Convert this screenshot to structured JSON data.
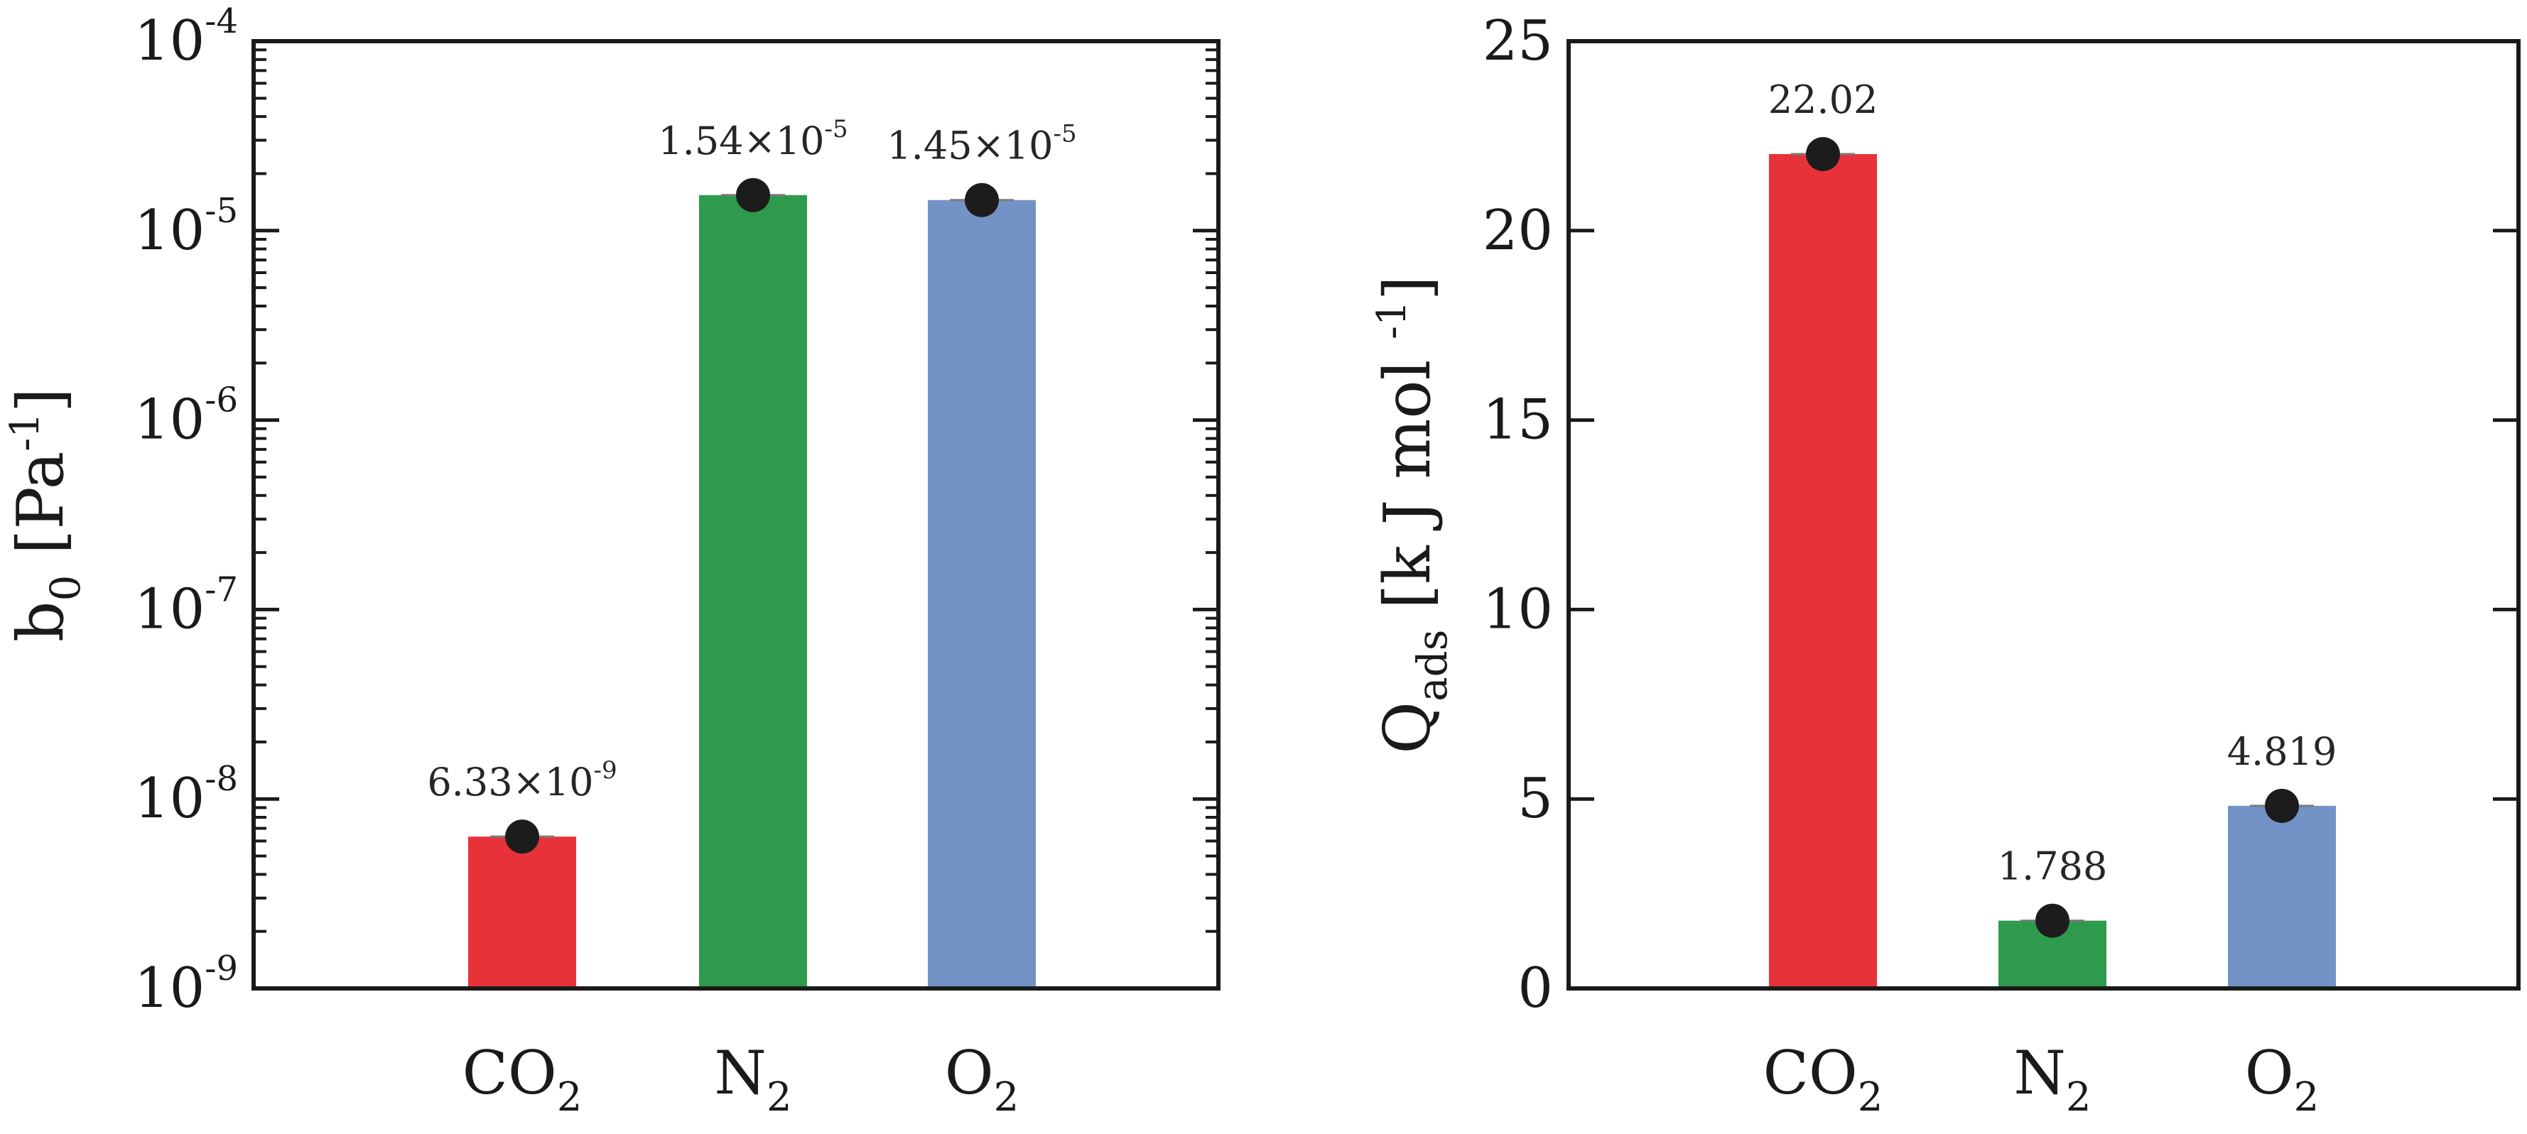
{
  "chart_data": [
    {
      "type": "bar",
      "id": "left",
      "title": "",
      "xlabel": "",
      "ylabel": {
        "base": "b",
        "sub": "0",
        "tail": " [Pa",
        "sup": "-1",
        "end": "]"
      },
      "yscale": "log",
      "ylim": [
        1e-09,
        0.0001
      ],
      "yticks": [
        {
          "value": 1e-09,
          "base": "10",
          "exp": "-9"
        },
        {
          "value": 1e-08,
          "base": "10",
          "exp": "-8"
        },
        {
          "value": 1e-07,
          "base": "10",
          "exp": "-7"
        },
        {
          "value": 1e-06,
          "base": "10",
          "exp": "-6"
        },
        {
          "value": 1e-05,
          "base": "10",
          "exp": "-5"
        },
        {
          "value": 0.0001,
          "base": "10",
          "exp": "-4"
        }
      ],
      "categories": [
        {
          "base": "CO",
          "sub": "2"
        },
        {
          "base": "N",
          "sub": "2"
        },
        {
          "base": "O",
          "sub": "2"
        }
      ],
      "values": [
        6.33e-09,
        1.54e-05,
        1.45e-05
      ],
      "data_labels": [
        {
          "mant": "6.33×10",
          "exp": "-9"
        },
        {
          "mant": "1.54×10",
          "exp": "-5"
        },
        {
          "mant": "1.45×10",
          "exp": "-5"
        }
      ],
      "grid": false
    },
    {
      "type": "bar",
      "id": "right",
      "title": "",
      "xlabel": "",
      "ylabel": {
        "base": "Q",
        "sub": "ads",
        "tail": " [k J mol ",
        "sup": "-1",
        "end": "]"
      },
      "yscale": "linear",
      "ylim": [
        0,
        25
      ],
      "yticks": [
        {
          "value": 0,
          "label": "0"
        },
        {
          "value": 5,
          "label": "5"
        },
        {
          "value": 10,
          "label": "10"
        },
        {
          "value": 15,
          "label": "15"
        },
        {
          "value": 20,
          "label": "20"
        },
        {
          "value": 25,
          "label": "25"
        }
      ],
      "categories": [
        {
          "base": "CO",
          "sub": "2"
        },
        {
          "base": "N",
          "sub": "2"
        },
        {
          "base": "O",
          "sub": "2"
        }
      ],
      "values": [
        22.02,
        1.788,
        4.819
      ],
      "data_labels": [
        {
          "text": "22.02"
        },
        {
          "text": "1.788"
        },
        {
          "text": "4.819"
        }
      ],
      "grid": false
    }
  ],
  "colors": {
    "co2": "#e8323a",
    "n2": "#2e9a4e",
    "o2": "#7393c7",
    "marker": "#1c1c1c"
  }
}
